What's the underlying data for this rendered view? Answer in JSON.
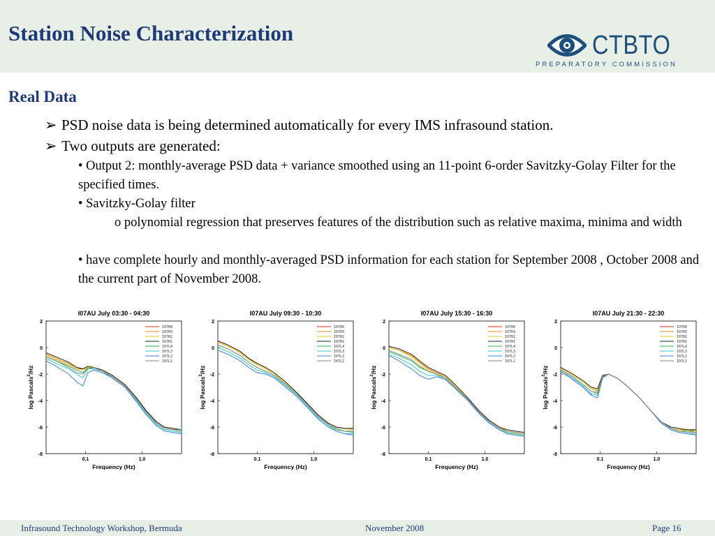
{
  "header": {
    "title": "Station Noise Characterization"
  },
  "logo": {
    "name": "CTBTO",
    "sub": "PREPARATORY COMMISSION"
  },
  "section": {
    "title": "Real Data"
  },
  "bullets": [
    "PSD noise data is being determined automatically for every IMS infrasound station.",
    "Two outputs are generated:"
  ],
  "sub": {
    "output2": "• Output 2: monthly-average PSD data + variance smoothed using an 11-point 6-order Savitzky-Golay Filter for the specified times.",
    "sg": "• Savitzky-Golay filter",
    "sg_detail": "o polynomial regression that preserves features of the distribution such as relative maxima, minima and width",
    "complete": "• have complete hourly and monthly-averaged PSD information for each station for September 2008 , October 2008 and the current part of November 2008."
  },
  "plot_labels": {
    "xlabel": "Frequency (Hz)",
    "ylabel_main": "log Pascals",
    "ylabel_sup": "2",
    "ylabel_tail": "/Hz",
    "xticks": [
      "0.1",
      "1.0"
    ],
    "yticks": [
      "2",
      "0",
      "-2",
      "-4",
      "-6",
      "-8"
    ],
    "legend": [
      "I07H4",
      "I07H3",
      "I07H2",
      "I07H1",
      "I07L4",
      "I07L3",
      "I07L2",
      "I07L1"
    ]
  },
  "legend_colors": [
    "#e8291c",
    "#f08a1c",
    "#e8d21c",
    "#222222",
    "#26b34a",
    "#2ec8cc",
    "#3b82e0",
    "#8a8a8a"
  ],
  "chart_data": [
    {
      "type": "line",
      "title": "I07AU July 03:30 - 04:30",
      "xlabel": "Frequency (Hz)",
      "ylabel": "log Pascals^2/Hz",
      "x_scale": "log",
      "xlim": [
        0.02,
        5
      ],
      "ylim": [
        -8,
        2
      ],
      "x": [
        0.02,
        0.03,
        0.05,
        0.07,
        0.09,
        0.11,
        0.14,
        0.2,
        0.3,
        0.5,
        0.8,
        1.2,
        1.8,
        2.5,
        3.5,
        5
      ],
      "series": [
        {
          "name": "I07H4",
          "values": [
            -0.6,
            -0.9,
            -1.3,
            -1.6,
            -1.6,
            -1.5,
            -1.5,
            -1.7,
            -2.1,
            -2.8,
            -3.8,
            -4.8,
            -5.6,
            -6.0,
            -6.1,
            -6.2
          ]
        },
        {
          "name": "I07H3",
          "values": [
            -0.5,
            -0.8,
            -1.2,
            -1.5,
            -1.6,
            -1.5,
            -1.5,
            -1.7,
            -2.1,
            -2.8,
            -3.8,
            -4.8,
            -5.6,
            -6.0,
            -6.1,
            -6.2
          ]
        },
        {
          "name": "I07H2",
          "values": [
            -0.6,
            -0.9,
            -1.3,
            -1.6,
            -1.7,
            -1.5,
            -1.5,
            -1.7,
            -2.2,
            -2.9,
            -3.9,
            -4.9,
            -5.7,
            -6.1,
            -6.2,
            -6.3
          ]
        },
        {
          "name": "I07H1",
          "values": [
            -0.4,
            -0.7,
            -1.1,
            -1.5,
            -1.6,
            -1.4,
            -1.5,
            -1.7,
            -2.1,
            -2.8,
            -3.8,
            -4.8,
            -5.6,
            -6.0,
            -6.1,
            -6.2
          ]
        },
        {
          "name": "I07L4",
          "values": [
            -0.7,
            -1.0,
            -1.4,
            -1.7,
            -1.9,
            -1.5,
            -1.6,
            -1.8,
            -2.2,
            -2.9,
            -3.9,
            -4.9,
            -5.7,
            -6.1,
            -6.2,
            -6.2
          ]
        },
        {
          "name": "I07L3",
          "values": [
            -0.8,
            -1.2,
            -1.6,
            -2.0,
            -2.3,
            -1.6,
            -1.6,
            -1.8,
            -2.3,
            -3.0,
            -4.0,
            -5.0,
            -5.8,
            -6.2,
            -6.3,
            -6.4
          ]
        },
        {
          "name": "I07L2",
          "values": [
            -1.0,
            -1.4,
            -2.0,
            -2.6,
            -2.9,
            -1.9,
            -1.7,
            -1.9,
            -2.3,
            -3.0,
            -4.1,
            -5.1,
            -5.9,
            -6.3,
            -6.4,
            -6.5
          ]
        },
        {
          "name": "I07L1",
          "values": [
            -0.7,
            -1.0,
            -1.5,
            -1.9,
            -2.0,
            -1.6,
            -1.5,
            -1.8,
            -2.2,
            -2.9,
            -3.9,
            -4.9,
            -5.7,
            -6.1,
            -6.2,
            -6.3
          ]
        }
      ]
    },
    {
      "type": "line",
      "title": "I07AU July 09:30 - 10:30",
      "xlabel": "Frequency (Hz)",
      "ylabel": "log Pascals^2/Hz",
      "x_scale": "log",
      "xlim": [
        0.02,
        5
      ],
      "ylim": [
        -8,
        2
      ],
      "x": [
        0.02,
        0.03,
        0.05,
        0.07,
        0.1,
        0.14,
        0.2,
        0.3,
        0.5,
        0.8,
        1.2,
        1.8,
        2.5,
        3.5,
        5
      ],
      "series": [
        {
          "name": "I07H4",
          "values": [
            0.4,
            0.1,
            -0.4,
            -0.9,
            -1.3,
            -1.6,
            -2.0,
            -2.6,
            -3.4,
            -4.3,
            -5.1,
            -5.7,
            -6.0,
            -6.1,
            -6.2
          ]
        },
        {
          "name": "I07H3",
          "values": [
            0.5,
            0.2,
            -0.3,
            -0.8,
            -1.3,
            -1.6,
            -2.0,
            -2.6,
            -3.4,
            -4.3,
            -5.1,
            -5.7,
            -6.0,
            -6.1,
            -6.1
          ]
        },
        {
          "name": "I07H2",
          "values": [
            0.4,
            0.1,
            -0.4,
            -0.9,
            -1.3,
            -1.6,
            -2.0,
            -2.6,
            -3.4,
            -4.3,
            -5.1,
            -5.7,
            -6.0,
            -6.1,
            -6.2
          ]
        },
        {
          "name": "I07H1",
          "values": [
            0.5,
            0.2,
            -0.3,
            -0.8,
            -1.2,
            -1.5,
            -1.9,
            -2.5,
            -3.4,
            -4.3,
            -5.1,
            -5.7,
            -6.0,
            -6.1,
            -6.1
          ]
        },
        {
          "name": "I07L4",
          "values": [
            0.2,
            -0.1,
            -0.6,
            -1.1,
            -1.5,
            -1.8,
            -2.1,
            -2.7,
            -3.5,
            -4.4,
            -5.2,
            -5.8,
            -6.2,
            -6.3,
            -6.4
          ]
        },
        {
          "name": "I07L3",
          "values": [
            0.0,
            -0.3,
            -0.8,
            -1.3,
            -1.7,
            -1.9,
            -2.2,
            -2.8,
            -3.6,
            -4.5,
            -5.3,
            -5.9,
            -6.3,
            -6.5,
            -6.5
          ]
        },
        {
          "name": "I07L2",
          "values": [
            -0.2,
            -0.5,
            -1.0,
            -1.5,
            -1.9,
            -2.0,
            -2.3,
            -2.9,
            -3.7,
            -4.6,
            -5.4,
            -6.0,
            -6.3,
            -6.5,
            -6.6
          ]
        },
        {
          "name": "I07L1",
          "values": [
            0.2,
            -0.1,
            -0.6,
            -1.1,
            -1.5,
            -1.8,
            -2.1,
            -2.7,
            -3.5,
            -4.4,
            -5.2,
            -5.8,
            -6.1,
            -6.3,
            -6.3
          ]
        }
      ]
    },
    {
      "type": "line",
      "title": "I07AU July 15:30 - 16:30",
      "xlabel": "Frequency (Hz)",
      "ylabel": "log Pascals^2/Hz",
      "x_scale": "log",
      "xlim": [
        0.02,
        5
      ],
      "ylim": [
        -8,
        2
      ],
      "x": [
        0.02,
        0.03,
        0.05,
        0.07,
        0.1,
        0.14,
        0.2,
        0.3,
        0.5,
        0.8,
        1.2,
        1.8,
        2.5,
        3.5,
        5
      ],
      "series": [
        {
          "name": "I07H4",
          "values": [
            0.0,
            -0.2,
            -0.6,
            -1.1,
            -1.6,
            -1.9,
            -2.2,
            -2.9,
            -3.8,
            -4.8,
            -5.5,
            -6.0,
            -6.3,
            -6.4,
            -6.5
          ]
        },
        {
          "name": "I07H3",
          "values": [
            0.0,
            -0.2,
            -0.6,
            -1.1,
            -1.6,
            -1.9,
            -2.2,
            -2.9,
            -3.8,
            -4.8,
            -5.5,
            -6.0,
            -6.3,
            -6.4,
            -6.5
          ]
        },
        {
          "name": "I07H2",
          "values": [
            0.0,
            -0.2,
            -0.7,
            -1.2,
            -1.7,
            -2.0,
            -2.2,
            -2.9,
            -3.8,
            -4.8,
            -5.5,
            -6.0,
            -6.3,
            -6.4,
            -6.5
          ]
        },
        {
          "name": "I07H1",
          "values": [
            0.1,
            -0.1,
            -0.5,
            -1.0,
            -1.5,
            -1.8,
            -2.1,
            -2.8,
            -3.8,
            -4.8,
            -5.5,
            -6.0,
            -6.2,
            -6.3,
            -6.4
          ]
        },
        {
          "name": "I07L4",
          "values": [
            -0.3,
            -0.6,
            -1.0,
            -1.5,
            -1.8,
            -2.0,
            -2.3,
            -3.0,
            -3.9,
            -4.9,
            -5.6,
            -6.1,
            -6.4,
            -6.5,
            -6.6
          ]
        },
        {
          "name": "I07L3",
          "values": [
            -0.5,
            -0.8,
            -1.3,
            -1.8,
            -2.1,
            -2.1,
            -2.4,
            -3.1,
            -4.0,
            -5.0,
            -5.7,
            -6.2,
            -6.5,
            -6.6,
            -6.7
          ]
        },
        {
          "name": "I07L2",
          "values": [
            -0.6,
            -1.0,
            -1.6,
            -2.1,
            -2.4,
            -2.2,
            -2.4,
            -3.1,
            -4.0,
            -5.0,
            -5.7,
            -6.2,
            -6.5,
            -6.6,
            -6.7
          ]
        },
        {
          "name": "I07L1",
          "values": [
            -0.2,
            -0.5,
            -0.9,
            -1.4,
            -1.8,
            -2.0,
            -2.3,
            -3.0,
            -3.9,
            -4.9,
            -5.6,
            -6.1,
            -6.3,
            -6.4,
            -6.5
          ]
        }
      ]
    },
    {
      "type": "line",
      "title": "I07AU July 21:30 - 22:30",
      "xlabel": "Frequency (Hz)",
      "ylabel": "log Pascals^2/Hz",
      "x_scale": "log",
      "xlim": [
        0.02,
        5
      ],
      "ylim": [
        -8,
        2
      ],
      "x": [
        0.02,
        0.03,
        0.05,
        0.07,
        0.09,
        0.11,
        0.14,
        0.2,
        0.3,
        0.5,
        0.8,
        1.2,
        1.8,
        2.5,
        3.5,
        5
      ],
      "series": [
        {
          "name": "I07H4",
          "values": [
            -1.6,
            -2.0,
            -2.6,
            -3.1,
            -3.3,
            -2.2,
            -2.0,
            -2.3,
            -2.9,
            -3.8,
            -4.8,
            -5.6,
            -6.1,
            -6.2,
            -6.2,
            -6.3
          ]
        },
        {
          "name": "I07H3",
          "values": [
            -1.6,
            -2.0,
            -2.6,
            -3.1,
            -3.3,
            -2.2,
            -2.0,
            -2.3,
            -2.9,
            -3.8,
            -4.8,
            -5.6,
            -6.1,
            -6.2,
            -6.2,
            -6.2
          ]
        },
        {
          "name": "I07H2",
          "values": [
            -1.6,
            -2.0,
            -2.6,
            -3.1,
            -3.2,
            -2.2,
            -2.0,
            -2.3,
            -2.9,
            -3.8,
            -4.8,
            -5.6,
            -6.1,
            -6.2,
            -6.3,
            -6.3
          ]
        },
        {
          "name": "I07H1",
          "values": [
            -1.5,
            -1.9,
            -2.5,
            -3.0,
            -3.1,
            -2.1,
            -2.0,
            -2.3,
            -2.9,
            -3.8,
            -4.8,
            -5.6,
            -6.0,
            -6.1,
            -6.2,
            -6.2
          ]
        },
        {
          "name": "I07L4",
          "values": [
            -1.7,
            -2.1,
            -2.8,
            -3.3,
            -3.4,
            -2.2,
            -2.0,
            -2.3,
            -2.9,
            -3.8,
            -4.8,
            -5.6,
            -6.1,
            -6.3,
            -6.3,
            -6.4
          ]
        },
        {
          "name": "I07L3",
          "values": [
            -1.8,
            -2.2,
            -2.9,
            -3.5,
            -3.6,
            -2.3,
            -2.0,
            -2.3,
            -2.9,
            -3.8,
            -4.8,
            -5.7,
            -6.2,
            -6.4,
            -6.5,
            -6.5
          ]
        },
        {
          "name": "I07L2",
          "values": [
            -1.8,
            -2.3,
            -3.0,
            -3.6,
            -3.8,
            -2.3,
            -2.0,
            -2.3,
            -2.9,
            -3.8,
            -4.8,
            -5.7,
            -6.2,
            -6.4,
            -6.5,
            -6.6
          ]
        },
        {
          "name": "I07L1",
          "values": [
            -1.7,
            -2.1,
            -2.8,
            -3.3,
            -3.5,
            -2.2,
            -2.0,
            -2.3,
            -2.9,
            -3.8,
            -4.8,
            -5.6,
            -6.1,
            -6.3,
            -6.4,
            -6.4
          ]
        }
      ]
    }
  ],
  "footer": {
    "left": "Infrasound Technology Workshop, Bermuda",
    "center": "November 2008",
    "right": "Page 16"
  }
}
